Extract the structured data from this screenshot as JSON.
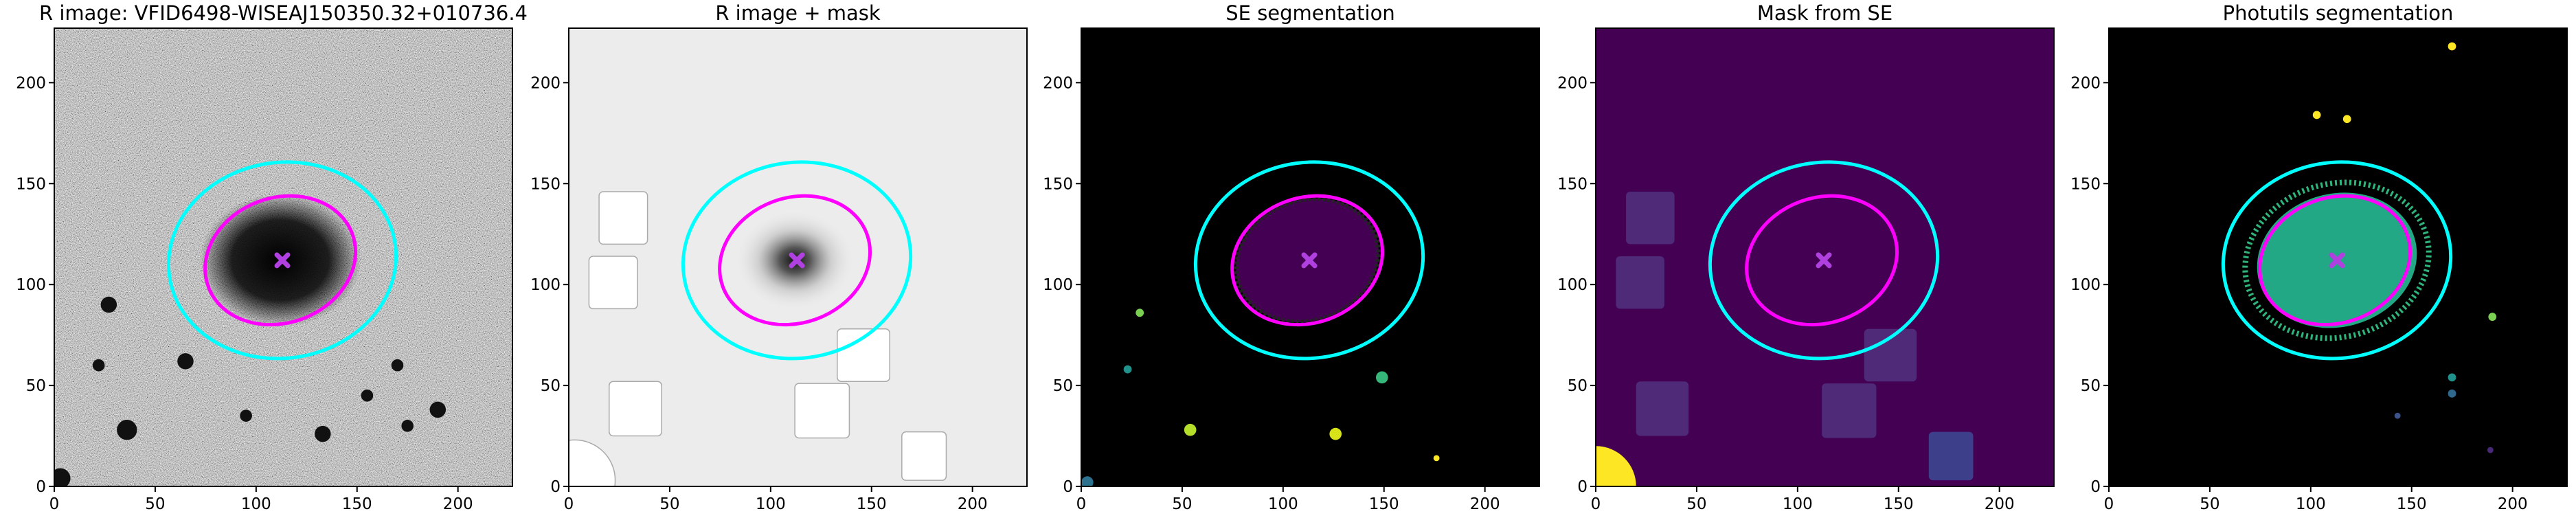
{
  "chart_data": [
    {
      "type": "image",
      "title": "R image: VFID6498-WISEAJ150350.32+010736.4",
      "xlim": [
        0,
        227
      ],
      "ylim": [
        0,
        227
      ],
      "xticks": [
        0,
        50,
        100,
        150,
        200
      ],
      "yticks": [
        0,
        50,
        100,
        150,
        200
      ],
      "ellipses": [
        {
          "color": "#00ffff",
          "x": 113,
          "y": 112,
          "width": 113,
          "height": 97,
          "angle": 8
        },
        {
          "color": "#ff00ff",
          "x": 112,
          "y": 112,
          "width": 76,
          "height": 62,
          "angle": 20
        }
      ],
      "marker": {
        "x": 113,
        "y": 112,
        "color": "#b040e0"
      }
    },
    {
      "type": "image",
      "title": "R image + mask",
      "xlim": [
        0,
        227
      ],
      "ylim": [
        0,
        227
      ],
      "xticks": [
        0,
        50,
        100,
        150,
        200
      ],
      "yticks": [
        0,
        50,
        100,
        150,
        200
      ],
      "ellipses": [
        {
          "color": "#00ffff",
          "x": 113,
          "y": 112,
          "width": 113,
          "height": 97,
          "angle": 8
        },
        {
          "color": "#ff00ff",
          "x": 112,
          "y": 112,
          "width": 76,
          "height": 62,
          "angle": 20
        }
      ],
      "marker": {
        "x": 113,
        "y": 112,
        "color": "#b040e0"
      }
    },
    {
      "type": "image",
      "title": "SE segmentation",
      "xlim": [
        0,
        227
      ],
      "ylim": [
        0,
        227
      ],
      "xticks": [
        0,
        50,
        100,
        150,
        200
      ],
      "yticks": [
        0,
        50,
        100,
        150,
        200
      ],
      "ellipses": [
        {
          "color": "#00ffff",
          "x": 113,
          "y": 112,
          "width": 113,
          "height": 97,
          "angle": 8
        },
        {
          "color": "#ff00ff",
          "x": 112,
          "y": 112,
          "width": 76,
          "height": 62,
          "angle": 20
        }
      ],
      "marker": {
        "x": 113,
        "y": 112,
        "color": "#b040e0"
      }
    },
    {
      "type": "image",
      "title": "Mask from SE",
      "xlim": [
        0,
        227
      ],
      "ylim": [
        0,
        227
      ],
      "xticks": [
        0,
        50,
        100,
        150,
        200
      ],
      "yticks": [
        0,
        50,
        100,
        150,
        200
      ],
      "ellipses": [
        {
          "color": "#00ffff",
          "x": 113,
          "y": 112,
          "width": 113,
          "height": 97,
          "angle": 8
        },
        {
          "color": "#ff00ff",
          "x": 112,
          "y": 112,
          "width": 76,
          "height": 62,
          "angle": 20
        }
      ],
      "marker": {
        "x": 113,
        "y": 112,
        "color": "#b040e0"
      }
    },
    {
      "type": "image",
      "title": "Photutils segmentation",
      "xlim": [
        0,
        227
      ],
      "ylim": [
        0,
        227
      ],
      "xticks": [
        0,
        50,
        100,
        150,
        200
      ],
      "yticks": [
        0,
        50,
        100,
        150,
        200
      ],
      "ellipses": [
        {
          "color": "#00ffff",
          "x": 113,
          "y": 112,
          "width": 113,
          "height": 97,
          "angle": 8
        },
        {
          "color": "#ff00ff",
          "x": 112,
          "y": 112,
          "width": 76,
          "height": 62,
          "angle": 20
        }
      ],
      "marker": {
        "x": 113,
        "y": 112,
        "color": "#b040e0"
      }
    }
  ]
}
